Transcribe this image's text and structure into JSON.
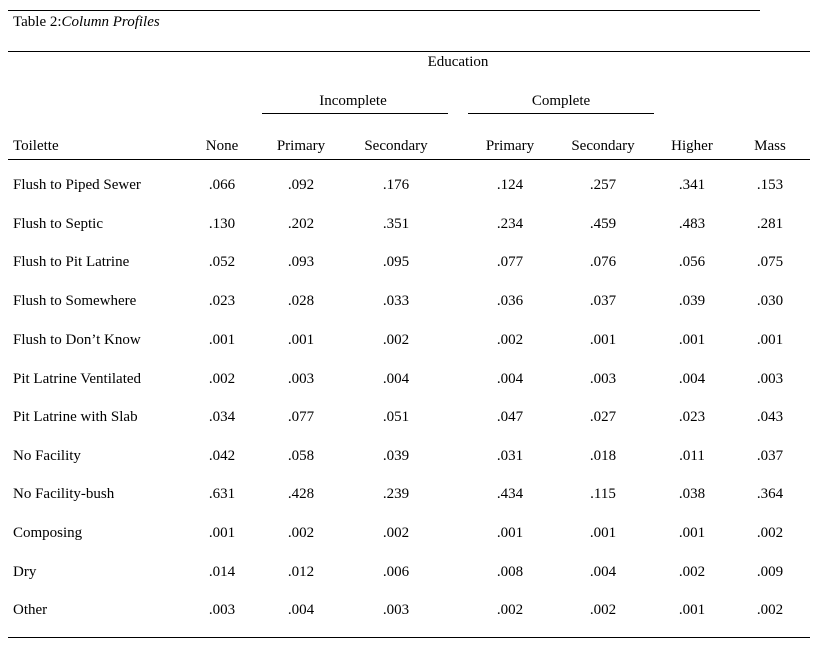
{
  "caption": {
    "label": "Table 2:",
    "title": "Column Profiles"
  },
  "header": {
    "group": "Education",
    "incomplete": "Incomplete",
    "complete": "Complete",
    "row_label": "Toilette",
    "columns": [
      "None",
      "Primary",
      "Secondary",
      "Primary",
      "Secondary",
      "Higher",
      "Mass"
    ]
  },
  "rows": [
    {
      "label": "Flush to Piped Sewer",
      "values": [
        ".066",
        ".092",
        ".176",
        ".124",
        ".257",
        ".341",
        ".153"
      ]
    },
    {
      "label": "Flush to Septic",
      "values": [
        ".130",
        ".202",
        ".351",
        ".234",
        ".459",
        ".483",
        ".281"
      ]
    },
    {
      "label": "Flush to Pit Latrine",
      "values": [
        ".052",
        ".093",
        ".095",
        ".077",
        ".076",
        ".056",
        ".075"
      ]
    },
    {
      "label": "Flush to Somewhere",
      "values": [
        ".023",
        ".028",
        ".033",
        ".036",
        ".037",
        ".039",
        ".030"
      ]
    },
    {
      "label": "Flush to Don’t Know",
      "values": [
        ".001",
        ".001",
        ".002",
        ".002",
        ".001",
        ".001",
        ".001"
      ]
    },
    {
      "label": "Pit Latrine Ventilated",
      "values": [
        ".002",
        ".003",
        ".004",
        ".004",
        ".003",
        ".004",
        ".003"
      ]
    },
    {
      "label": "Pit Latrine with Slab",
      "values": [
        ".034",
        ".077",
        ".051",
        ".047",
        ".027",
        ".023",
        ".043"
      ]
    },
    {
      "label": "No Facility",
      "values": [
        ".042",
        ".058",
        ".039",
        ".031",
        ".018",
        ".011",
        ".037"
      ]
    },
    {
      "label": "No Facility-bush",
      "values": [
        ".631",
        ".428",
        ".239",
        ".434",
        ".115",
        ".038",
        ".364"
      ]
    },
    {
      "label": "Composing",
      "values": [
        ".001",
        ".002",
        ".002",
        ".001",
        ".001",
        ".001",
        ".002"
      ]
    },
    {
      "label": "Dry",
      "values": [
        ".014",
        ".012",
        ".006",
        ".008",
        ".004",
        ".002",
        ".009"
      ]
    },
    {
      "label": "Other",
      "values": [
        ".003",
        ".004",
        ".003",
        ".002",
        ".002",
        ".001",
        ".002"
      ]
    }
  ]
}
